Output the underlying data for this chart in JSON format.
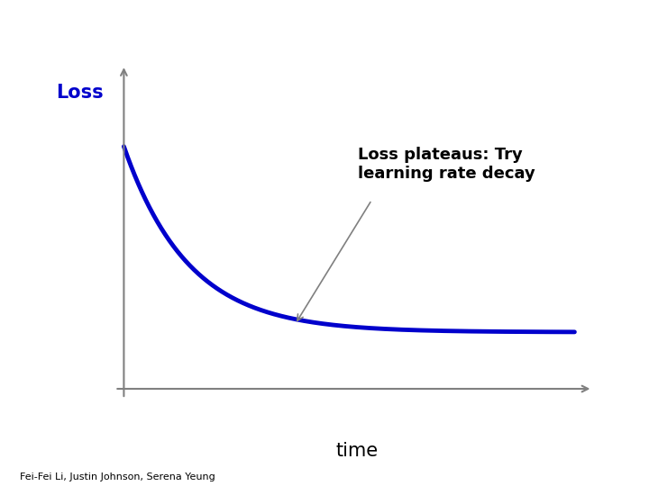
{
  "background_color": "#ffffff",
  "curve_color": "#0000cc",
  "curve_linewidth": 3.5,
  "axis_color": "#808080",
  "ylabel": "Loss",
  "ylabel_color": "#0000cc",
  "ylabel_fontsize": 15,
  "xlabel": "time",
  "xlabel_fontsize": 15,
  "xlabel_color": "#000000",
  "annotation_text": "Loss plateaus: Try\nlearning rate decay",
  "annotation_fontsize": 13,
  "annotation_color": "#000000",
  "footer_text": "Fei-Fei Li, Justin Johnson, Serena Yeung",
  "footer_fontsize": 8,
  "footer_color": "#000000",
  "arrow_color": "#808080"
}
